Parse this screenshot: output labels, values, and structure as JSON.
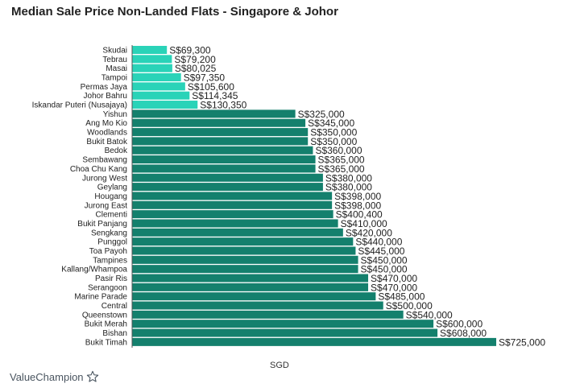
{
  "page": {
    "title": "Median Sale Price Non-Landed Flats - Singapore & Johor"
  },
  "brand": {
    "name": "ValueChampion"
  },
  "colors": {
    "johor": "#2ad3b8",
    "singapore": "#14806d",
    "axis": "#555555",
    "label": "#222222"
  },
  "chart_data": {
    "type": "bar",
    "orientation": "horizontal",
    "title": "Median Sale Price Non-Landed Flats - Singapore & Johor",
    "xlabel": "SGD",
    "ylabel": "",
    "xlim": [
      0,
      725000
    ],
    "grid": false,
    "legend": "none",
    "categories": [
      "Skudai",
      "Tebrau",
      "Masai",
      "Tampoi",
      "Permas Jaya",
      "Johor Bahru",
      "Iskandar Puteri (Nusajaya)",
      "Yishun",
      "Ang Mo Kio",
      "Woodlands",
      "Bukit Batok",
      "Bedok",
      "Sembawang",
      "Choa Chu Kang",
      "Jurong West",
      "Geylang",
      "Hougang",
      "Jurong East",
      "Clementi",
      "Bukit Panjang",
      "Sengkang",
      "Punggol",
      "Toa Payoh",
      "Tampines",
      "Kallang/Whampoa",
      "Pasir Ris",
      "Serangoon",
      "Marine Parade",
      "Central",
      "Queenstown",
      "Bukit Merah",
      "Bishan",
      "Bukit Timah"
    ],
    "values": [
      69300,
      79200,
      80025,
      97350,
      105600,
      114345,
      130350,
      325000,
      345000,
      350000,
      350000,
      360000,
      365000,
      365000,
      380000,
      380000,
      398000,
      398000,
      400400,
      410000,
      420000,
      440000,
      445000,
      450000,
      450000,
      470000,
      470000,
      485000,
      500000,
      540000,
      600000,
      608000,
      725000
    ],
    "value_labels": [
      "S$69,300",
      "S$79,200",
      "S$80,025",
      "S$97,350",
      "S$105,600",
      "S$114,345",
      "S$130,350",
      "S$325,000",
      "S$345,000",
      "S$350,000",
      "S$350,000",
      "S$360,000",
      "S$365,000",
      "S$365,000",
      "S$380,000",
      "S$380,000",
      "S$398,000",
      "S$398,000",
      "S$400,400",
      "S$410,000",
      "S$420,000",
      "S$440,000",
      "S$445,000",
      "S$450,000",
      "S$450,000",
      "S$470,000",
      "S$470,000",
      "S$485,000",
      "S$500,000",
      "S$540,000",
      "S$600,000",
      "S$608,000",
      "S$725,000"
    ],
    "groups": [
      "johor",
      "johor",
      "johor",
      "johor",
      "johor",
      "johor",
      "johor",
      "singapore",
      "singapore",
      "singapore",
      "singapore",
      "singapore",
      "singapore",
      "singapore",
      "singapore",
      "singapore",
      "singapore",
      "singapore",
      "singapore",
      "singapore",
      "singapore",
      "singapore",
      "singapore",
      "singapore",
      "singapore",
      "singapore",
      "singapore",
      "singapore",
      "singapore",
      "singapore",
      "singapore",
      "singapore",
      "singapore"
    ]
  }
}
